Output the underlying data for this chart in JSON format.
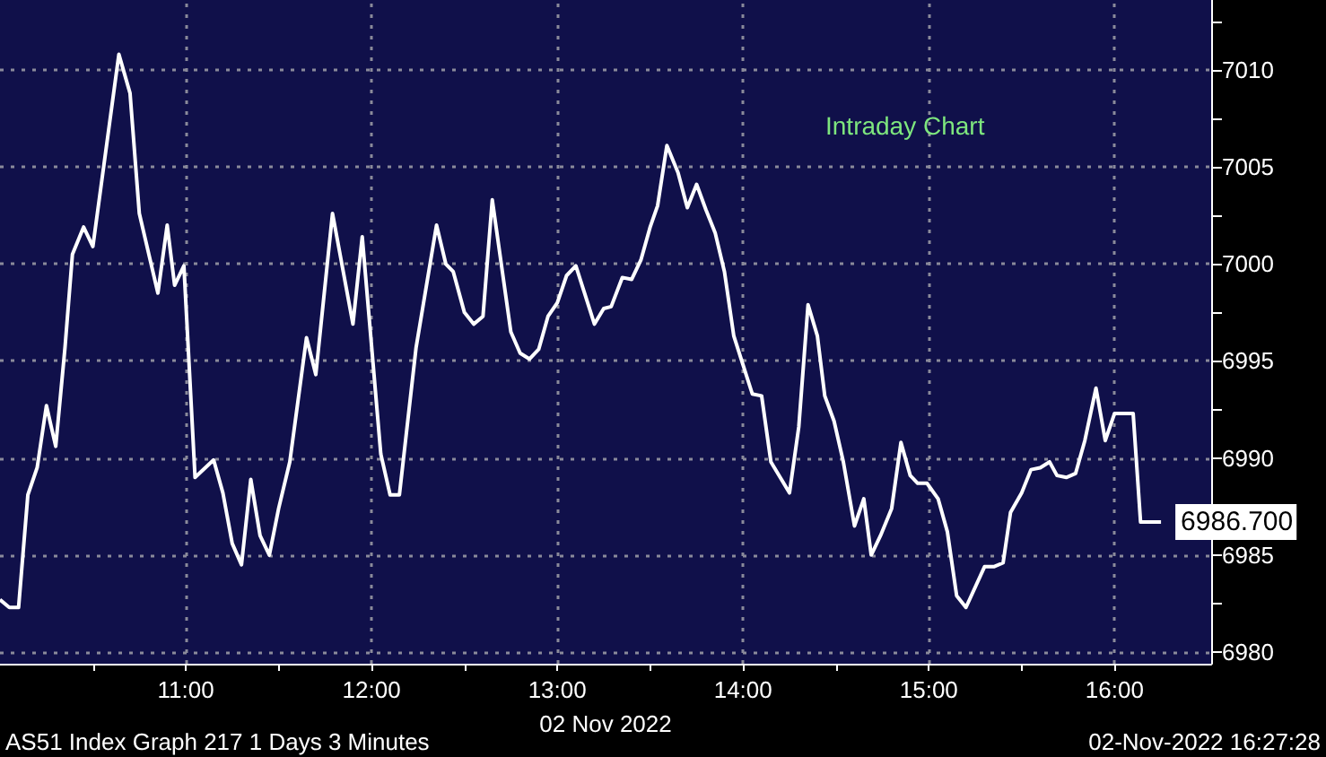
{
  "chart_data": {
    "type": "line",
    "title": "Intraday Chart",
    "xlabel": "02 Nov 2022",
    "annotations": [
      "AS51 Index Graph 217 1 Days 3 Minutes",
      "02-Nov-2022 16:27:28"
    ],
    "x": [
      10.0,
      10.05,
      10.1,
      10.15,
      10.2,
      10.25,
      10.3,
      10.35,
      10.39,
      10.45,
      10.5,
      10.64,
      10.7,
      10.75,
      10.85,
      10.9,
      10.94,
      10.99,
      11.05,
      11.15,
      11.2,
      11.25,
      11.3,
      11.35,
      11.4,
      11.45,
      11.5,
      11.56,
      11.65,
      11.7,
      11.79,
      11.9,
      11.95,
      12.05,
      12.1,
      12.15,
      12.24,
      12.35,
      12.4,
      12.44,
      12.5,
      12.55,
      12.6,
      12.65,
      12.75,
      12.8,
      12.85,
      12.9,
      12.95,
      13.0,
      13.05,
      13.1,
      13.2,
      13.25,
      13.29,
      13.35,
      13.4,
      13.45,
      13.5,
      13.54,
      13.59,
      13.65,
      13.7,
      13.75,
      13.8,
      13.85,
      13.9,
      13.95,
      14.0,
      14.05,
      14.1,
      14.15,
      14.2,
      14.25,
      14.3,
      14.35,
      14.4,
      14.44,
      14.49,
      14.54,
      14.6,
      14.65,
      14.69,
      14.74,
      14.8,
      14.85,
      14.9,
      14.94,
      14.99,
      15.05,
      15.1,
      15.15,
      15.2,
      15.3,
      15.35,
      15.4,
      15.44,
      15.5,
      15.55,
      15.6,
      15.65,
      15.69,
      15.74,
      15.79,
      15.84,
      15.9,
      15.95,
      16.0,
      16.1,
      16.14,
      16.25
    ],
    "series": [
      {
        "color": "#ffffff",
        "values": [
          6982.7,
          6982.3,
          6982.3,
          6988.1,
          6989.5,
          6992.7,
          6990.6,
          6995.7,
          7000.5,
          7001.9,
          7000.9,
          7010.8,
          7008.8,
          7002.6,
          6998.5,
          7002.0,
          6998.9,
          6999.9,
          6989.0,
          6989.9,
          6988.2,
          6985.6,
          6984.5,
          6988.9,
          6986.0,
          6985.0,
          6987.4,
          6989.8,
          6996.2,
          6994.3,
          7002.6,
          6996.9,
          7001.4,
          6990.2,
          6988.1,
          6988.1,
          6995.7,
          7002.0,
          7000.0,
          6999.6,
          6997.5,
          6996.9,
          6997.3,
          7003.3,
          6996.5,
          6995.4,
          6995.1,
          6995.6,
          6997.3,
          6998.0,
          6999.4,
          6999.9,
          6996.9,
          6997.7,
          6997.8,
          6999.3,
          6999.2,
          7000.2,
          7001.9,
          7003.0,
          7006.1,
          7004.7,
          7002.9,
          7004.1,
          7002.8,
          7001.6,
          6999.6,
          6996.3,
          6994.8,
          6993.3,
          6993.2,
          6989.8,
          6989.0,
          6988.2,
          6991.6,
          6997.9,
          6996.3,
          6993.2,
          6991.9,
          6989.8,
          6986.5,
          6987.9,
          6985.0,
          6986.0,
          6987.4,
          6990.8,
          6989.1,
          6988.7,
          6988.7,
          6987.9,
          6986.2,
          6982.9,
          6982.3,
          6984.4,
          6984.4,
          6984.6,
          6987.2,
          6988.2,
          6989.4,
          6989.5,
          6989.8,
          6989.1,
          6989.0,
          6989.2,
          6990.9,
          6993.6,
          6990.9,
          6992.3,
          6992.3,
          6986.7,
          6986.7
        ],
        "value_labels": [
          null,
          null,
          null,
          null,
          null,
          null,
          null,
          null,
          null,
          null,
          null,
          null,
          null,
          null,
          null,
          null,
          null,
          null,
          null,
          null,
          null,
          null,
          null,
          null,
          null,
          null,
          null,
          null,
          null,
          null,
          null,
          null,
          null,
          null,
          null,
          null,
          null,
          null,
          null,
          null,
          null,
          null,
          null,
          null,
          null,
          null,
          null,
          null,
          null,
          null,
          null,
          null,
          null,
          null,
          null,
          null,
          null,
          null,
          null,
          null,
          null,
          null,
          null,
          null,
          null,
          null,
          null,
          null,
          null,
          null,
          null,
          null,
          null,
          null,
          null,
          null,
          null,
          null,
          null,
          null,
          null,
          null,
          null,
          null,
          null,
          null,
          null,
          null,
          null,
          null,
          null,
          null,
          null,
          null,
          null,
          null,
          null,
          null,
          null,
          null,
          null,
          null,
          null,
          null,
          null,
          null,
          null,
          null,
          null,
          null,
          "6986.700"
        ]
      }
    ],
    "xlim": [
      10,
      16.52
    ],
    "xticks": [
      {
        "value": 10.5,
        "label": null
      },
      {
        "value": 11,
        "label": "11:00"
      },
      {
        "value": 11.5,
        "label": null
      },
      {
        "value": 12,
        "label": "12:00"
      },
      {
        "value": 12.5,
        "label": null
      },
      {
        "value": 13,
        "label": "13:00"
      },
      {
        "value": 13.5,
        "label": null
      },
      {
        "value": 14,
        "label": "14:00"
      },
      {
        "value": 14.5,
        "label": null
      },
      {
        "value": 15,
        "label": "15:00"
      },
      {
        "value": 15.5,
        "label": null
      },
      {
        "value": 16,
        "label": "16:00"
      }
    ],
    "ylim": [
      6979.4,
      7013.6
    ],
    "yticks": [
      6980,
      {
        "value": 6982.5,
        "label": null
      },
      6985,
      {
        "value": 6987.5,
        "label": null
      },
      6990,
      {
        "value": 6992.5,
        "label": null
      },
      6995,
      {
        "value": 6997.5,
        "label": null
      },
      7000,
      {
        "value": 7002.5,
        "label": null
      },
      7005,
      {
        "value": 7007.5,
        "label": null
      },
      7010,
      {
        "value": 7012.5,
        "label": null
      }
    ],
    "grid": true,
    "marker": "none",
    "line_style": "solid"
  }
}
